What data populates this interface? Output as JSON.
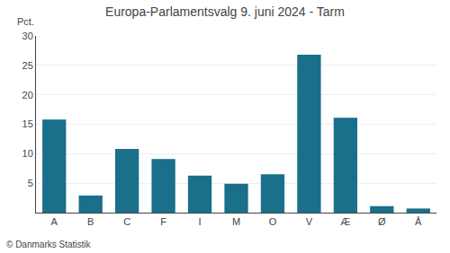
{
  "chart_data": {
    "type": "bar",
    "title": "Europa-Parlamentsvalg 9. juni 2024 - Tarm",
    "categories": [
      "A",
      "B",
      "C",
      "F",
      "I",
      "M",
      "O",
      "V",
      "Æ",
      "Ø",
      "Å"
    ],
    "values": [
      15.8,
      2.9,
      10.8,
      9.1,
      6.3,
      4.9,
      6.5,
      26.8,
      16.1,
      1.1,
      0.7
    ],
    "color": "#1a6f8a",
    "ylabel": "Pct.",
    "ylim": [
      0,
      30
    ],
    "yticks": [
      5,
      10,
      15,
      20,
      25,
      30
    ],
    "grid": true,
    "annotations": [
      "© Danmarks Statistik"
    ]
  }
}
